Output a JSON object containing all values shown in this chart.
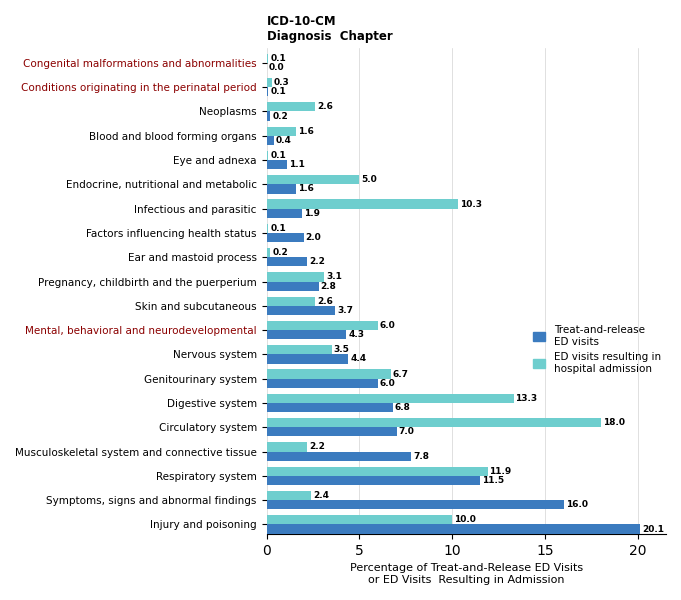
{
  "categories": [
    "Injury and poisoning",
    "Symptoms, signs and abnormal findings",
    "Respiratory system",
    "Musculoskeletal system and connective tissue",
    "Circulatory system",
    "Digestive system",
    "Genitourinary system",
    "Nervous system",
    "Mental, behavioral and neurodevelopmental",
    "Skin and subcutaneous",
    "Pregnancy, childbirth and the puerperium",
    "Ear and mastoid process",
    "Factors influencing health status",
    "Infectious and parasitic",
    "Endocrine, nutritional and metabolic",
    "Eye and adnexa",
    "Blood and blood forming organs",
    "Neoplasms",
    "Conditions originating in the perinatal period",
    "Congenital malformations and abnormalities"
  ],
  "treat_release": [
    20.1,
    16.0,
    11.5,
    7.8,
    7.0,
    6.8,
    6.0,
    4.4,
    4.3,
    3.7,
    2.8,
    2.2,
    2.0,
    1.9,
    1.6,
    1.1,
    0.4,
    0.2,
    0.1,
    0.0
  ],
  "hospital_admit": [
    10.0,
    2.4,
    11.9,
    2.2,
    18.0,
    13.3,
    6.7,
    3.5,
    6.0,
    2.6,
    3.1,
    0.2,
    0.1,
    10.3,
    5.0,
    0.1,
    1.6,
    2.6,
    0.3,
    0.1
  ],
  "color_treat": "#3B7BBF",
  "color_admit": "#6ECECE",
  "title_line1": "ICD-10-CM",
  "title_line2": "Diagnosis  Chapter",
  "xlabel": "Percentage of Treat-and-Release ED Visits\nor ED Visits  Resulting in Admission",
  "legend_treat": "Treat-and-release\nED visits",
  "legend_admit": "ED visits resulting in\nhospital admission",
  "xlim": [
    0,
    21.5
  ],
  "xticks": [
    0,
    5,
    10,
    15,
    20
  ],
  "bar_height": 0.38,
  "figsize": [
    6.81,
    6.0
  ],
  "dpi": 100,
  "red_labels": [
    "Mental, behavioral and neurodevelopmental",
    "Conditions originating in the perinatal period",
    "Congenital malformations and abnormalities"
  ]
}
